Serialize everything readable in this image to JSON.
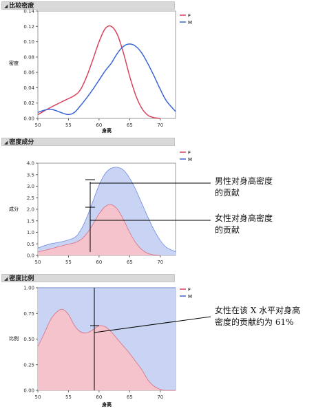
{
  "sections": [
    {
      "title": "比较密度"
    },
    {
      "title": "密度成分"
    },
    {
      "title": "密度比例"
    }
  ],
  "legend": {
    "f_label": "F",
    "m_label": "M"
  },
  "colors": {
    "female": "#d9435a",
    "male": "#3b64d6",
    "female_fill": "#f4c3cc",
    "male_fill": "#c9d4f4"
  },
  "annotations": {
    "male_contribution": [
      "男性对身高密度",
      "的贡献"
    ],
    "female_contribution": [
      "女性对身高密度",
      "的贡献"
    ],
    "female_share": [
      "女性在该 X 水平对身高",
      "密度的贡献约为 61%"
    ]
  },
  "chart_data": [
    {
      "type": "line",
      "title": "",
      "xlabel": "身高",
      "ylabel": "密度",
      "xlim": [
        50,
        72.5
      ],
      "ylim": [
        0,
        0.14
      ],
      "xticks": [
        50,
        55,
        60,
        65,
        70
      ],
      "yticks": [
        0,
        0.02,
        0.04,
        0.06,
        0.08,
        0.1,
        0.12,
        0.14
      ],
      "ytick_labels": [
        "0.00",
        "0.02",
        "0.04",
        "0.06",
        "0.08",
        "0.10",
        "0.12",
        "0.14"
      ],
      "series": [
        {
          "name": "F",
          "x": [
            50,
            52,
            54,
            56,
            57,
            58,
            59,
            60,
            61,
            62,
            63,
            64,
            65,
            66,
            67,
            68,
            69,
            70
          ],
          "values": [
            0.005,
            0.014,
            0.022,
            0.03,
            0.038,
            0.055,
            0.077,
            0.1,
            0.117,
            0.12,
            0.109,
            0.085,
            0.055,
            0.03,
            0.013,
            0.004,
            0.001,
            0.0
          ]
        },
        {
          "name": "M",
          "x": [
            50,
            52,
            54,
            55,
            56,
            57,
            58,
            59,
            60,
            61,
            62,
            63,
            64,
            65,
            66,
            67,
            68,
            69,
            70,
            71,
            72.5
          ],
          "values": [
            0.008,
            0.012,
            0.007,
            0.005,
            0.008,
            0.017,
            0.027,
            0.038,
            0.05,
            0.062,
            0.072,
            0.085,
            0.094,
            0.097,
            0.094,
            0.085,
            0.071,
            0.055,
            0.038,
            0.023,
            0.009
          ]
        }
      ]
    },
    {
      "type": "area",
      "title": "",
      "xlabel": "",
      "ylabel": "成分",
      "xlim": [
        50,
        72.5
      ],
      "ylim": [
        0,
        4.0
      ],
      "xticks": [
        50,
        55,
        60,
        65,
        70
      ],
      "yticks": [
        0,
        0.5,
        1.0,
        1.5,
        2.0,
        2.5,
        3.0,
        3.5,
        4.0
      ],
      "ytick_labels": [
        "0.0",
        "0.5",
        "1.0",
        "1.5",
        "2.0",
        "2.5",
        "3.0",
        "3.5",
        "4.0"
      ],
      "series": [
        {
          "name": "F",
          "x": [
            50,
            52,
            54,
            56,
            57,
            58,
            59,
            60,
            61,
            62,
            63,
            64,
            65,
            66,
            67,
            68,
            69,
            70
          ],
          "values": [
            0.15,
            0.28,
            0.42,
            0.55,
            0.68,
            0.95,
            1.35,
            1.8,
            2.12,
            2.2,
            2.0,
            1.55,
            1.0,
            0.55,
            0.25,
            0.08,
            0.02,
            0.0
          ]
        },
        {
          "name": "M",
          "x": [
            50,
            52,
            54,
            56,
            57,
            58,
            59,
            60,
            61,
            62,
            63,
            64,
            65,
            66,
            67,
            68,
            69,
            70,
            71,
            72.5
          ],
          "values": [
            0.32,
            0.5,
            0.6,
            0.78,
            1.1,
            1.65,
            2.35,
            3.05,
            3.55,
            3.78,
            3.82,
            3.7,
            3.35,
            2.85,
            2.25,
            1.65,
            1.1,
            0.65,
            0.35,
            0.16
          ]
        }
      ]
    },
    {
      "type": "area",
      "title": "",
      "xlabel": "身高",
      "ylabel": "比例",
      "xlim": [
        50,
        72.5
      ],
      "ylim": [
        0,
        1.0
      ],
      "xticks": [
        50,
        55,
        60,
        65,
        70
      ],
      "yticks": [
        0,
        0.25,
        0.5,
        0.75,
        1.0
      ],
      "ytick_labels": [
        "0.00",
        "0.25",
        "0.50",
        "0.75",
        "1.00"
      ],
      "series": [
        {
          "name": "F",
          "x": [
            50,
            51,
            52,
            53,
            54,
            55,
            56,
            57,
            58,
            59,
            60,
            61,
            62,
            63,
            64,
            65,
            66,
            67,
            68,
            69,
            70,
            71,
            72.5
          ],
          "values": [
            0.43,
            0.55,
            0.68,
            0.76,
            0.79,
            0.74,
            0.63,
            0.57,
            0.56,
            0.59,
            0.63,
            0.62,
            0.57,
            0.5,
            0.43,
            0.36,
            0.28,
            0.2,
            0.1,
            0.04,
            0.01,
            0.0,
            0.0
          ]
        },
        {
          "name": "M",
          "x": [
            50,
            72.5
          ],
          "values": [
            1.0,
            1.0
          ]
        }
      ]
    }
  ]
}
